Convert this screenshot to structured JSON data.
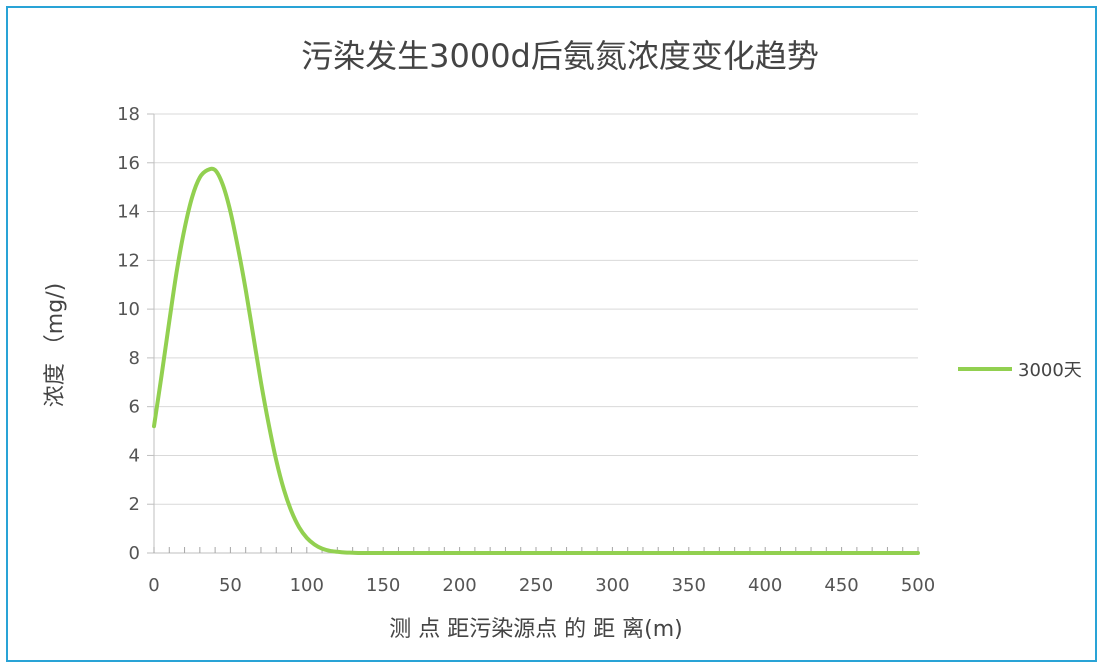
{
  "chart_data": {
    "type": "line",
    "title": "污染发生3000d后氨氮浓度变化趋势",
    "xlabel": "测 点 距污染源点 的 距 离(m)",
    "ylabel": "浓度 （mg/)",
    "xlim": [
      0,
      500
    ],
    "ylim": [
      0,
      18
    ],
    "x_ticks": [
      0,
      50,
      100,
      150,
      200,
      250,
      300,
      350,
      400,
      450,
      500
    ],
    "y_ticks": [
      0,
      2,
      4,
      6,
      8,
      10,
      12,
      14,
      16,
      18
    ],
    "grid": true,
    "legend_position": "right",
    "series": [
      {
        "name": "3000天",
        "color": "#92d050",
        "x": [
          0,
          5,
          10,
          15,
          20,
          25,
          30,
          35,
          40,
          45,
          50,
          55,
          60,
          65,
          70,
          75,
          80,
          85,
          90,
          95,
          100,
          105,
          110,
          115,
          120,
          125,
          130,
          135,
          140,
          145,
          150,
          200,
          250,
          300,
          350,
          400,
          450,
          500
        ],
        "y": [
          5.2,
          7.3,
          9.5,
          11.6,
          13.3,
          14.6,
          15.4,
          15.7,
          15.7,
          15.1,
          14.0,
          12.5,
          10.8,
          8.9,
          7.0,
          5.3,
          3.8,
          2.6,
          1.7,
          1.05,
          0.62,
          0.35,
          0.18,
          0.09,
          0.05,
          0.02,
          0.01,
          0.0,
          0.0,
          0.0,
          0.0,
          0.0,
          0.0,
          0.0,
          0.0,
          0.0,
          0.0,
          0.0
        ]
      }
    ]
  }
}
